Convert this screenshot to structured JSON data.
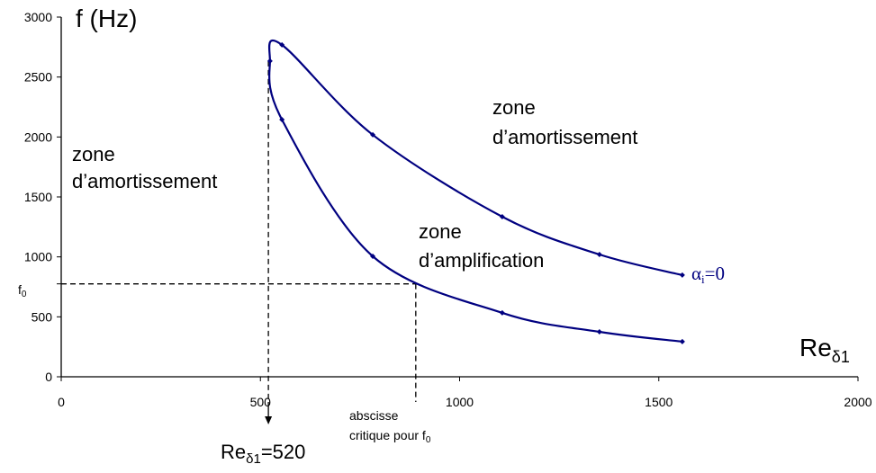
{
  "chart_data": {
    "type": "line",
    "ylabel": "f (Hz)",
    "xlabel": {
      "base": "Re",
      "sub": "δ1"
    },
    "xlim": [
      0,
      2000
    ],
    "xticks": [
      0,
      500,
      1000,
      1500,
      2000
    ],
    "ylim": [
      0,
      3000
    ],
    "yticks": [
      0,
      500,
      1000,
      1500,
      2000,
      2500,
      3000
    ],
    "series": [
      {
        "color": "#000080",
        "x": [
          1559,
          1351,
          1107,
          782,
          554,
          524,
          554,
          782,
          1107,
          1351,
          1559
        ],
        "values": [
          293,
          375,
          533,
          1005,
          2145,
          2633,
          2768,
          2018,
          1335,
          1020,
          848
        ]
      }
    ],
    "curve_label": {
      "base": "α",
      "sub": "i",
      "rest": "=0"
    },
    "f0": {
      "value": 775,
      "base": "f",
      "sub": "0"
    },
    "critical_x_f0": 890,
    "critical_re": {
      "value": 520,
      "base": "Re",
      "sub": "δ1",
      "rest": "=520"
    },
    "annotations": [
      {
        "lines": [
          "zone",
          "d’amortissement"
        ]
      },
      {
        "lines": [
          "zone",
          "d’amortissement"
        ]
      },
      {
        "lines": [
          "zone",
          "d’amplification"
        ]
      },
      {
        "lines": [
          "abscisse",
          "critique pour f"
        ],
        "sub": "0"
      }
    ]
  }
}
